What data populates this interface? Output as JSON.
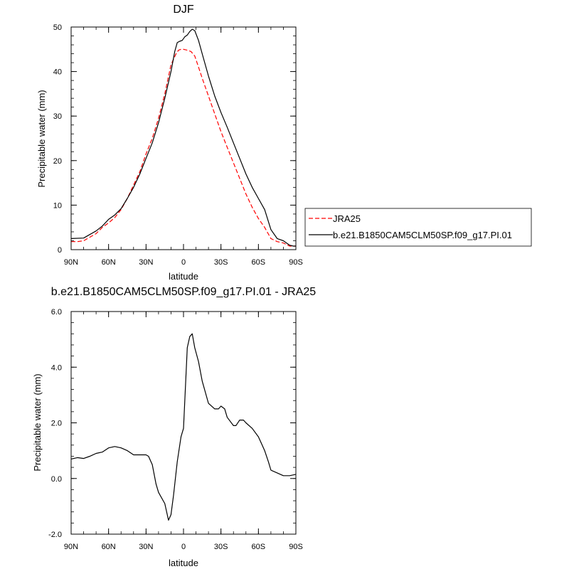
{
  "chart_data": [
    {
      "type": "line",
      "title": "DJF",
      "xlabel": "latitude",
      "ylabel": "Precipitable water (mm)",
      "x_ticks": [
        "90N",
        "60N",
        "30N",
        "0",
        "30S",
        "60S",
        "90S"
      ],
      "x_tick_values": [
        90,
        60,
        30,
        0,
        -30,
        -60,
        -90
      ],
      "y_ticks": [
        "0",
        "10",
        "20",
        "30",
        "40",
        "50"
      ],
      "xlim": [
        90,
        -90
      ],
      "ylim": [
        0,
        50
      ],
      "legend_position": "right",
      "series": [
        {
          "name": "JRA25",
          "color": "#ff0000",
          "dash": "dashed",
          "x": [
            90,
            85,
            80,
            75,
            70,
            65,
            60,
            55,
            50,
            45,
            40,
            35,
            30,
            25,
            20,
            15,
            10,
            6,
            4,
            2,
            0,
            -3,
            -6,
            -9,
            -12,
            -15,
            -20,
            -25,
            -30,
            -35,
            -40,
            -45,
            -50,
            -55,
            -60,
            -65,
            -70,
            -75,
            -80,
            -85,
            -90
          ],
          "y": [
            1.8,
            1.8,
            2.0,
            2.8,
            3.6,
            5.0,
            6.0,
            7.2,
            9.0,
            11.5,
            14.5,
            17.5,
            21.5,
            25.0,
            29.5,
            35.0,
            41.5,
            44.0,
            44.8,
            45.0,
            45.0,
            44.8,
            44.5,
            43.5,
            41.0,
            38.5,
            34.5,
            30.5,
            26.5,
            23.0,
            19.5,
            16.0,
            12.5,
            9.5,
            7.0,
            5.0,
            2.5,
            1.8,
            1.5,
            0.8,
            0.8
          ]
        },
        {
          "name": "b.e21.B1850CAM5CLM50SP.f09_g17.PI.01",
          "color": "#000000",
          "dash": "solid",
          "x": [
            90,
            80,
            75,
            70,
            65,
            60,
            55,
            50,
            45,
            40,
            35,
            30,
            25,
            20,
            15,
            10,
            7,
            5,
            3,
            1,
            -1,
            -3,
            -5,
            -7,
            -9,
            -12,
            -15,
            -20,
            -25,
            -30,
            -35,
            -40,
            -45,
            -50,
            -55,
            -60,
            -65,
            -70,
            -75,
            -80,
            -85,
            -88,
            -90
          ],
          "y": [
            2.5,
            2.6,
            3.4,
            4.2,
            5.3,
            6.8,
            7.8,
            9.2,
            11.5,
            14.0,
            17.0,
            20.5,
            24.0,
            28.5,
            34.0,
            40.0,
            44.5,
            46.5,
            46.8,
            47.0,
            47.8,
            48.2,
            49.0,
            49.5,
            49.2,
            47.0,
            44.0,
            39.0,
            34.5,
            30.8,
            27.5,
            24.0,
            20.5,
            17.0,
            14.0,
            11.5,
            9.0,
            4.5,
            2.5,
            2.0,
            1.0,
            0.8,
            0.8
          ]
        }
      ]
    },
    {
      "type": "line",
      "title": "b.e21.B1850CAM5CLM50SP.f09_g17.PI.01 - JRA25",
      "xlabel": "latitude",
      "ylabel": "Precipitable water (mm)",
      "x_ticks": [
        "90N",
        "60N",
        "30N",
        "0",
        "30S",
        "60S",
        "90S"
      ],
      "x_tick_values": [
        90,
        60,
        30,
        0,
        -30,
        -60,
        -90
      ],
      "y_ticks": [
        "-2.0",
        "0.0",
        "2.0",
        "4.0",
        "6.0"
      ],
      "y_tick_values": [
        -2,
        0,
        2,
        4,
        6
      ],
      "xlim": [
        90,
        -90
      ],
      "ylim": [
        -2,
        6
      ],
      "series": [
        {
          "color": "#000000",
          "dash": "solid",
          "x": [
            90,
            85,
            80,
            75,
            70,
            65,
            60,
            55,
            50,
            45,
            40,
            35,
            30,
            28,
            25,
            22,
            20,
            15,
            12,
            10,
            8,
            5,
            2,
            0,
            -3,
            -5,
            -7,
            -9,
            -12,
            -15,
            -20,
            -25,
            -28,
            -30,
            -33,
            -35,
            -40,
            -42,
            -45,
            -48,
            -50,
            -55,
            -60,
            -63,
            -65,
            -68,
            -70,
            -75,
            -80,
            -85,
            -90
          ],
          "y": [
            0.7,
            0.75,
            0.72,
            0.8,
            0.9,
            0.95,
            1.1,
            1.15,
            1.1,
            1.0,
            0.85,
            0.85,
            0.85,
            0.8,
            0.5,
            -0.2,
            -0.5,
            -0.9,
            -1.5,
            -1.3,
            -0.6,
            0.6,
            1.5,
            1.8,
            4.7,
            5.1,
            5.2,
            4.7,
            4.2,
            3.5,
            2.7,
            2.5,
            2.5,
            2.6,
            2.5,
            2.2,
            1.9,
            1.9,
            2.1,
            2.1,
            2.0,
            1.8,
            1.5,
            1.2,
            1.0,
            0.6,
            0.3,
            0.2,
            0.1,
            0.1,
            0.15
          ]
        }
      ]
    }
  ]
}
